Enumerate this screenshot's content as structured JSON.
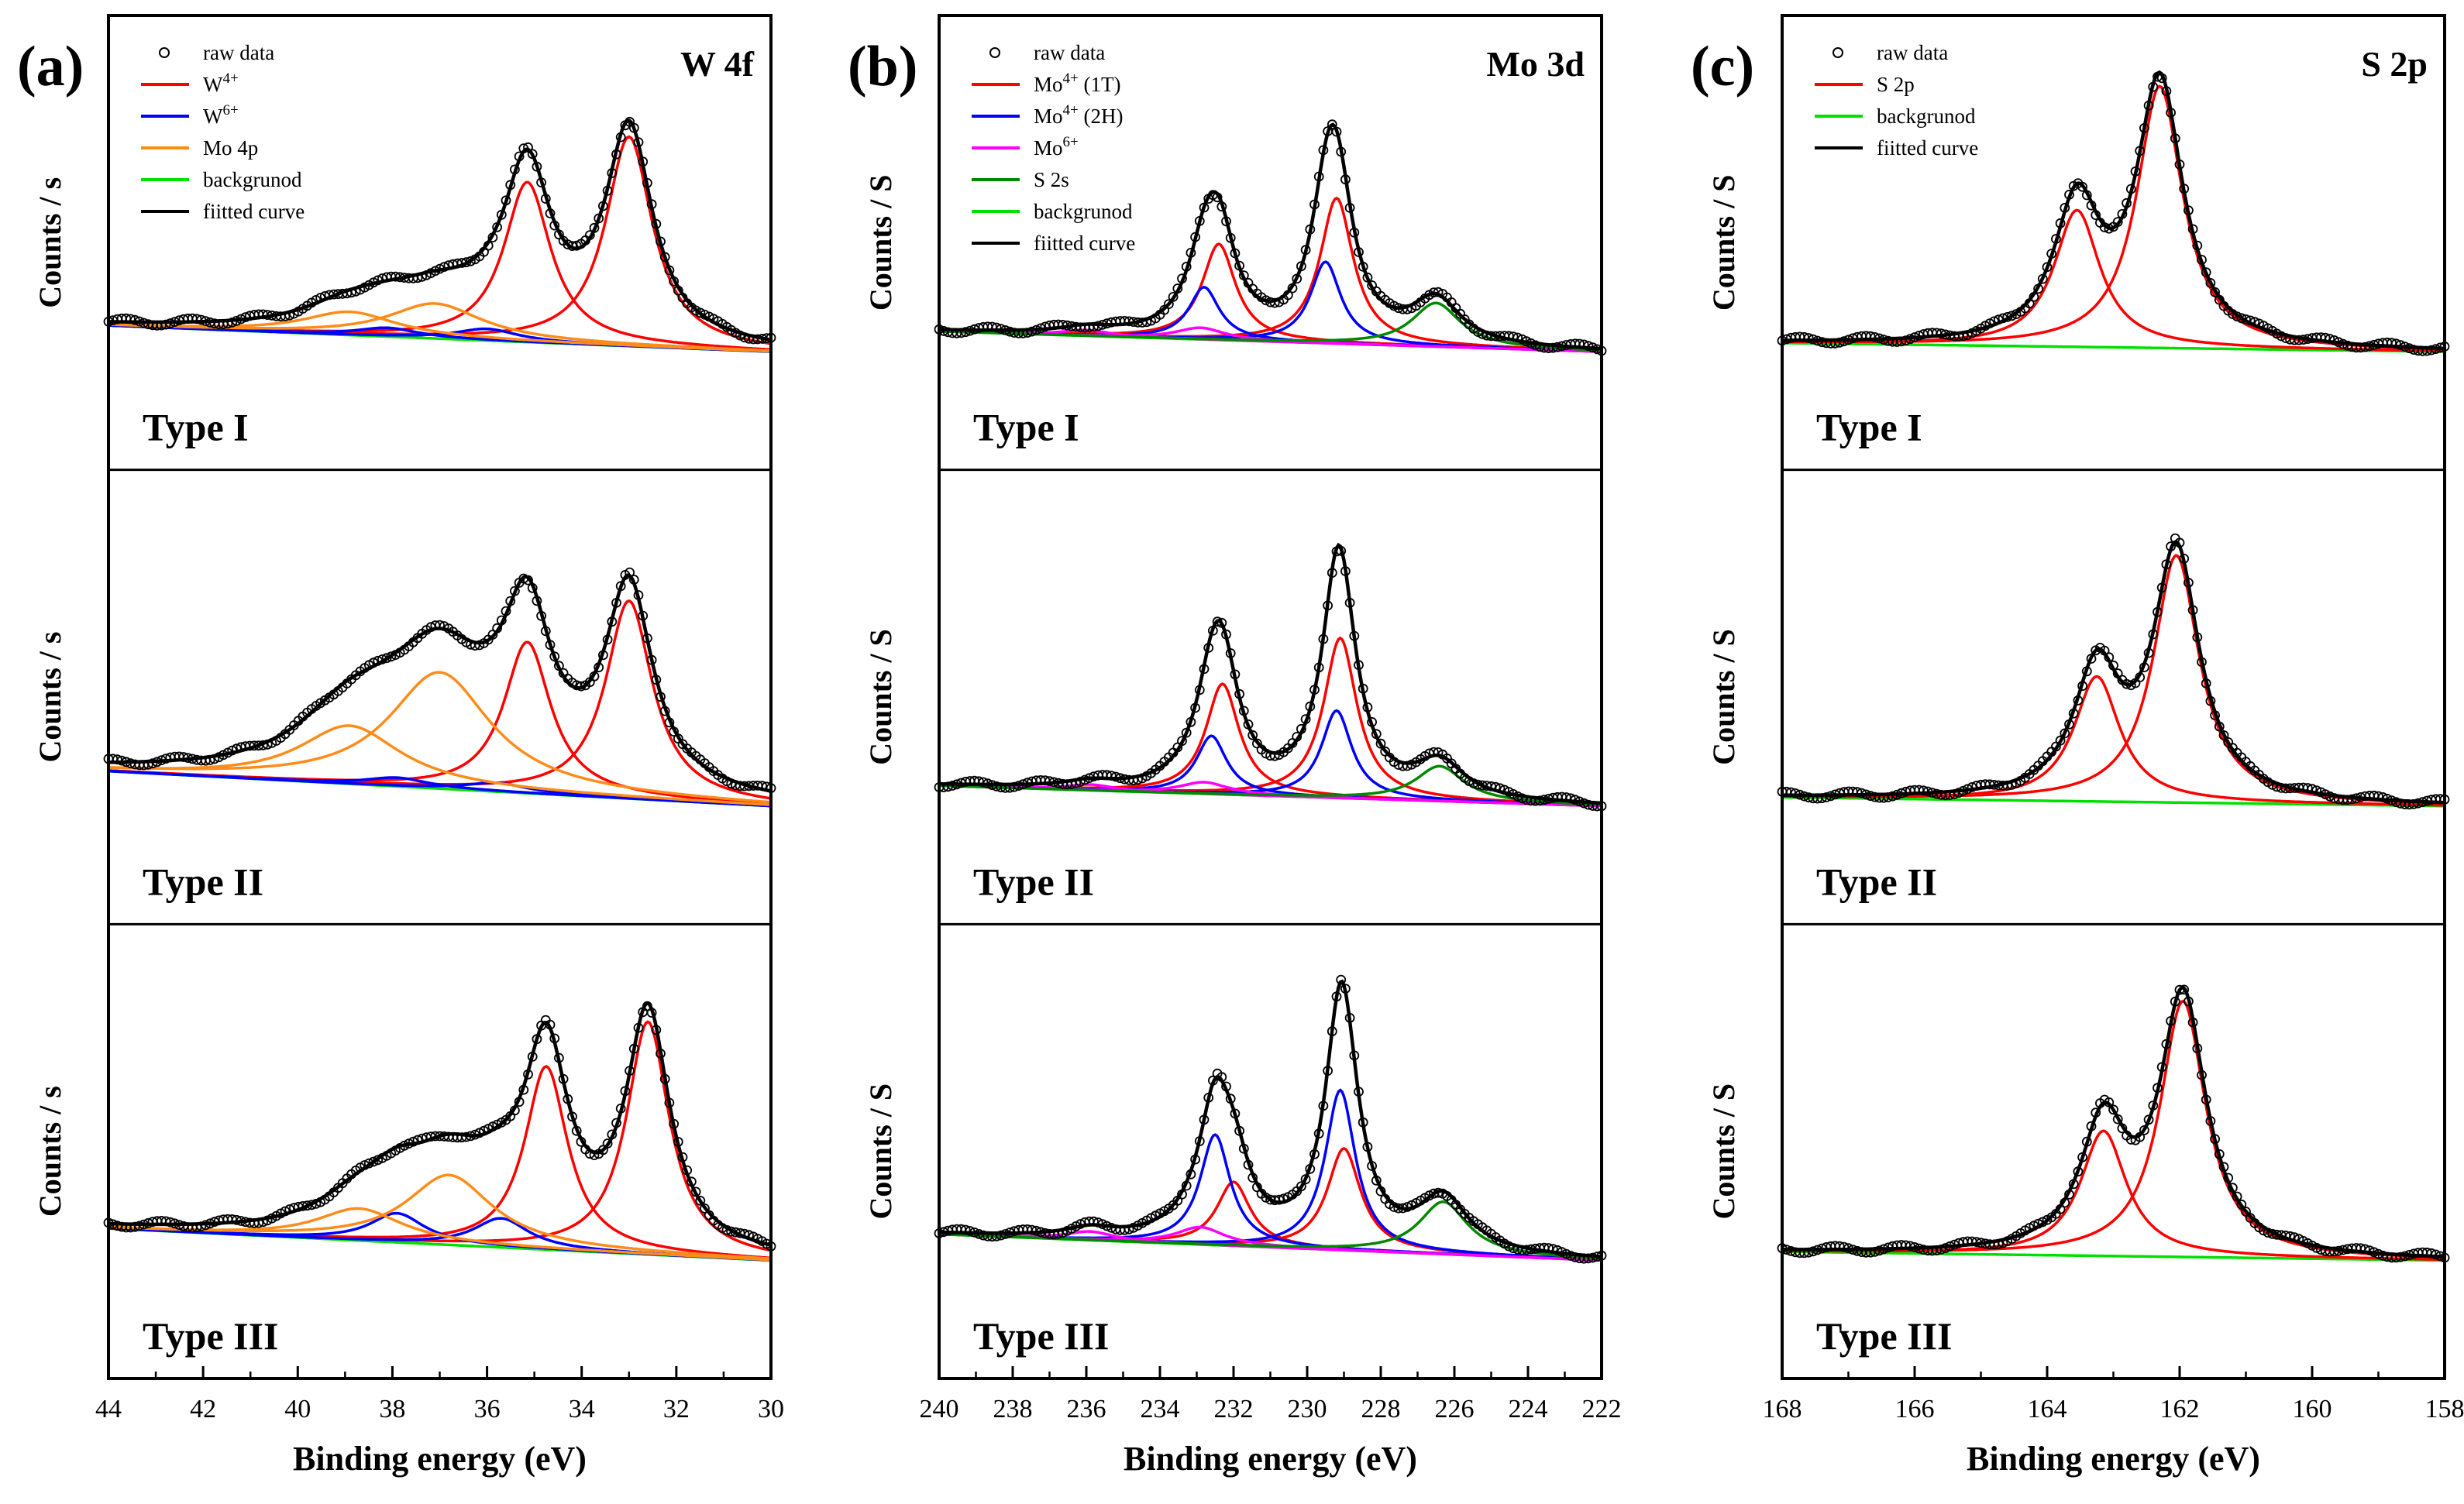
{
  "chart_data": [
    {
      "id": "a",
      "panel_label": "(a)",
      "type": "line",
      "core_level": "W 4f",
      "title": "W 4f",
      "xlabel": "Binding energy (eV)",
      "ylabel": "Counts / s",
      "xlim": [
        44,
        30
      ],
      "xticks": [
        "44",
        "42",
        "40",
        "38",
        "36",
        "34",
        "32",
        "30"
      ],
      "legend": [
        {
          "label": "raw data",
          "sup": "",
          "color": "#000000",
          "marker": "circle"
        },
        {
          "label": "W",
          "sup": "4+",
          "color": "#ff0000"
        },
        {
          "label": "W",
          "sup": "6+",
          "color": "#0000ff"
        },
        {
          "label": "Mo 4p",
          "sup": "",
          "color": "#ff8c1a"
        },
        {
          "label": "backgrunod",
          "sup": "",
          "color": "#00e000"
        },
        {
          "label": "fiitted curve",
          "sup": "",
          "color": "#000000"
        }
      ],
      "legend_position": "top-left",
      "subplots": [
        {
          "type_label": "Type I",
          "background": {
            "start": 0.09,
            "end": 0.0
          },
          "components": [
            {
              "name": "W4+",
              "color": "#ff0000",
              "peaks": [
                [
                  33.0,
                  0.72,
                  0.6
                ],
                [
                  35.15,
                  0.55,
                  0.6
                ]
              ]
            },
            {
              "name": "W6+",
              "color": "#0000ff",
              "peaks": [
                [
                  36.0,
                  0.04,
                  0.8
                ],
                [
                  38.1,
                  0.03,
                  0.8
                ]
              ]
            },
            {
              "name": "Mo 4p",
              "color": "#ff8c1a",
              "peaks": [
                [
                  37.1,
                  0.12,
                  1.2
                ],
                [
                  38.9,
                  0.08,
                  1.2
                ]
              ]
            }
          ]
        },
        {
          "type_label": "Type II",
          "background": {
            "start": 0.12,
            "end": 0.0
          },
          "components": [
            {
              "name": "W4+",
              "color": "#ff0000",
              "peaks": [
                [
                  33.0,
                  0.68,
                  0.6
                ],
                [
                  35.15,
                  0.52,
                  0.6
                ]
              ]
            },
            {
              "name": "W6+",
              "color": "#0000ff",
              "peaks": [
                [
                  35.8,
                  0.03,
                  0.8
                ],
                [
                  37.9,
                  0.03,
                  0.8
                ]
              ]
            },
            {
              "name": "Mo 4p",
              "color": "#ff8c1a",
              "peaks": [
                [
                  37.0,
                  0.4,
                  1.3
                ],
                [
                  38.9,
                  0.2,
                  1.3
                ]
              ]
            }
          ]
        },
        {
          "type_label": "Type III",
          "background": {
            "start": 0.11,
            "end": 0.0
          },
          "components": [
            {
              "name": "W4+",
              "color": "#ff0000",
              "peaks": [
                [
                  32.6,
                  0.8,
                  0.55
                ],
                [
                  34.75,
                  0.63,
                  0.55
                ]
              ]
            },
            {
              "name": "W6+",
              "color": "#0000ff",
              "peaks": [
                [
                  35.7,
                  0.1,
                  0.7
                ],
                [
                  37.9,
                  0.1,
                  0.7
                ]
              ]
            },
            {
              "name": "Mo 4p",
              "color": "#ff8c1a",
              "peaks": [
                [
                  36.8,
                  0.24,
                  1.1
                ],
                [
                  38.7,
                  0.11,
                  1.1
                ]
              ]
            }
          ]
        }
      ]
    },
    {
      "id": "b",
      "panel_label": "(b)",
      "type": "line",
      "core_level": "Mo 3d",
      "title": "Mo 3d",
      "xlabel": "Binding energy (eV)",
      "ylabel": "Counts / S",
      "xlim": [
        240,
        222
      ],
      "xticks": [
        "240",
        "238",
        "236",
        "234",
        "232",
        "230",
        "228",
        "226",
        "224",
        "222"
      ],
      "legend": [
        {
          "label": "raw data",
          "sup": "",
          "color": "#000000",
          "marker": "circle"
        },
        {
          "label": "Mo",
          "sup": "4+",
          "after": " (1T)",
          "color": "#ff0000"
        },
        {
          "label": "Mo",
          "sup": "4+",
          "after": " (2H)",
          "color": "#0000ff"
        },
        {
          "label": "Mo",
          "sup": "6+",
          "color": "#ff00ff"
        },
        {
          "label": "S 2s",
          "sup": "",
          "color": "#008800"
        },
        {
          "label": "backgrunod",
          "sup": "",
          "color": "#00e000"
        },
        {
          "label": "fiitted curve",
          "sup": "",
          "color": "#000000"
        }
      ],
      "legend_position": "top-left",
      "subplots": [
        {
          "type_label": "Type I",
          "background": {
            "start": 0.07,
            "end": 0.0
          },
          "components": [
            {
              "name": "Mo4+ (1T)",
              "color": "#ff0000",
              "peaks": [
                [
                  229.2,
                  0.5,
                  0.55
                ],
                [
                  232.4,
                  0.33,
                  0.55
                ]
              ]
            },
            {
              "name": "Mo4+ (2H)",
              "color": "#0000ff",
              "peaks": [
                [
                  229.5,
                  0.28,
                  0.5
                ],
                [
                  232.8,
                  0.18,
                  0.5
                ]
              ]
            },
            {
              "name": "Mo6+",
              "color": "#ff00ff",
              "peaks": [
                [
                  232.9,
                  0.04,
                  0.8
                ],
                [
                  236.0,
                  0.02,
                  0.8
                ]
              ]
            },
            {
              "name": "S 2s",
              "color": "#008800",
              "peaks": [
                [
                  226.5,
                  0.15,
                  0.8
                ]
              ]
            }
          ]
        },
        {
          "type_label": "Type II",
          "background": {
            "start": 0.07,
            "end": 0.0
          },
          "components": [
            {
              "name": "Mo4+ (1T)",
              "color": "#ff0000",
              "peaks": [
                [
                  229.1,
                  0.55,
                  0.55
                ],
                [
                  232.3,
                  0.38,
                  0.55
                ]
              ]
            },
            {
              "name": "Mo4+ (2H)",
              "color": "#0000ff",
              "peaks": [
                [
                  229.2,
                  0.3,
                  0.5
                ],
                [
                  232.6,
                  0.2,
                  0.5
                ]
              ]
            },
            {
              "name": "Mo6+",
              "color": "#ff00ff",
              "peaks": [
                [
                  232.8,
                  0.04,
                  0.8
                ],
                [
                  235.9,
                  0.02,
                  0.8
                ]
              ]
            },
            {
              "name": "S 2s",
              "color": "#008800",
              "peaks": [
                [
                  226.4,
                  0.12,
                  0.8
                ]
              ]
            }
          ]
        },
        {
          "type_label": "Type III",
          "background": {
            "start": 0.09,
            "end": 0.0
          },
          "components": [
            {
              "name": "Mo4+ (1T)",
              "color": "#ff0000",
              "peaks": [
                [
                  229.0,
                  0.35,
                  0.55
                ],
                [
                  232.0,
                  0.22,
                  0.55
                ]
              ]
            },
            {
              "name": "Mo4+ (2H)",
              "color": "#0000ff",
              "peaks": [
                [
                  229.1,
                  0.55,
                  0.5
                ],
                [
                  232.5,
                  0.38,
                  0.5
                ]
              ]
            },
            {
              "name": "Mo6+",
              "color": "#ff00ff",
              "peaks": [
                [
                  232.9,
                  0.06,
                  0.8
                ],
                [
                  235.9,
                  0.03,
                  0.8
                ]
              ]
            },
            {
              "name": "S 2s",
              "color": "#008800",
              "peaks": [
                [
                  226.3,
                  0.18,
                  0.8
                ]
              ]
            }
          ]
        }
      ]
    },
    {
      "id": "c",
      "panel_label": "(c)",
      "type": "line",
      "core_level": "S 2p",
      "title": "S 2p",
      "xlabel": "Binding energy (eV)",
      "ylabel": "Counts / S",
      "xlim": [
        168,
        158
      ],
      "xticks": [
        "168",
        "166",
        "164",
        "162",
        "160",
        "158"
      ],
      "legend": [
        {
          "label": "raw data",
          "sup": "",
          "color": "#000000",
          "marker": "circle"
        },
        {
          "label": "S 2p",
          "sup": "",
          "color": "#ff0000"
        },
        {
          "label": "backgrunod",
          "sup": "",
          "color": "#00e000"
        },
        {
          "label": "fiitted curve",
          "sup": "",
          "color": "#000000"
        }
      ],
      "legend_position": "top-left",
      "subplots": [
        {
          "type_label": "Type I",
          "background": {
            "start": 0.03,
            "end": 0.0
          },
          "components": [
            {
              "name": "S 2p",
              "color": "#ff0000",
              "peaks": [
                [
                  162.3,
                  0.9,
                  0.42
                ],
                [
                  163.55,
                  0.47,
                  0.42
                ]
              ]
            }
          ]
        },
        {
          "type_label": "Type II",
          "background": {
            "start": 0.03,
            "end": 0.0
          },
          "components": [
            {
              "name": "S 2p",
              "color": "#ff0000",
              "peaks": [
                [
                  162.05,
                  0.85,
                  0.42
                ],
                [
                  163.25,
                  0.43,
                  0.42
                ]
              ]
            }
          ]
        },
        {
          "type_label": "Type III",
          "background": {
            "start": 0.03,
            "end": 0.0
          },
          "components": [
            {
              "name": "S 2p",
              "color": "#ff0000",
              "peaks": [
                [
                  161.95,
                  0.88,
                  0.42
                ],
                [
                  163.15,
                  0.43,
                  0.42
                ]
              ]
            }
          ]
        }
      ]
    }
  ]
}
